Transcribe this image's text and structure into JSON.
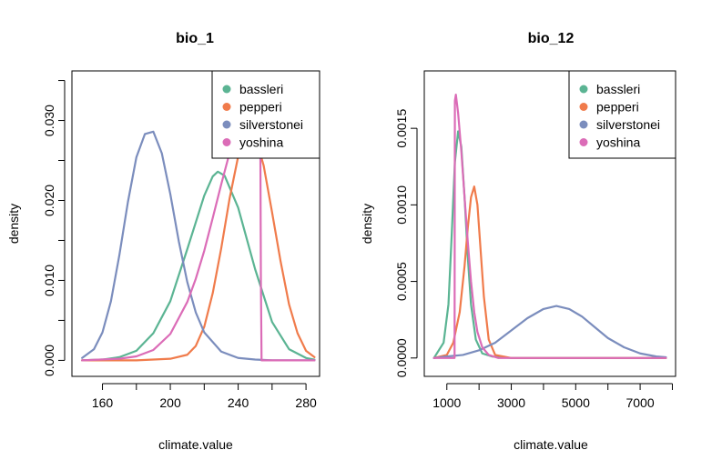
{
  "colors": {
    "bassleri": "#5bb493",
    "pepperi": "#f07b4b",
    "silverstonei": "#7b8dbd",
    "yoshina": "#db6cb7"
  },
  "chart_data": [
    {
      "type": "line",
      "title": "bio_1",
      "xlabel": "climate.value",
      "ylabel": "density",
      "xlim": [
        142,
        288
      ],
      "ylim": [
        -0.002,
        0.0362
      ],
      "xticks": [
        160,
        200,
        240,
        280
      ],
      "xtick_labels": [
        "160",
        "200",
        "240",
        "280"
      ],
      "xticks_minor": [
        140,
        180,
        220,
        260
      ],
      "yticks": [
        0.0,
        0.01,
        0.02,
        0.03
      ],
      "ytick_labels": [
        "0.000",
        "0.010",
        "0.020",
        "0.030"
      ],
      "yticks_minor": [
        0.005,
        0.015,
        0.025,
        0.035
      ],
      "legend_position": "top-right",
      "legend": [
        "bassleri",
        "pepperi",
        "silverstonei",
        "yoshina"
      ],
      "series": [
        {
          "name": "bassleri",
          "color": "#5bb493",
          "x": [
            148,
            160,
            170,
            180,
            190,
            200,
            210,
            220,
            225,
            228,
            232,
            240,
            250,
            260,
            270,
            280,
            285
          ],
          "y": [
            0.0,
            0.0001,
            0.0004,
            0.0012,
            0.0034,
            0.0074,
            0.0139,
            0.0206,
            0.023,
            0.0236,
            0.0231,
            0.0191,
            0.0114,
            0.0048,
            0.0014,
            0.0003,
            0.0001
          ]
        },
        {
          "name": "pepperi",
          "color": "#f07b4b",
          "x": [
            148,
            180,
            200,
            210,
            215,
            220,
            225,
            230,
            235,
            240,
            245,
            250,
            255,
            260,
            265,
            270,
            275,
            280,
            285
          ],
          "y": [
            0.0,
            0.0,
            0.0002,
            0.0007,
            0.0018,
            0.0042,
            0.0084,
            0.014,
            0.0203,
            0.0255,
            0.0283,
            0.028,
            0.0244,
            0.0185,
            0.0124,
            0.007,
            0.0034,
            0.0012,
            0.0004
          ]
        },
        {
          "name": "silverstonei",
          "color": "#7b8dbd",
          "x": [
            148,
            155,
            160,
            165,
            170,
            175,
            180,
            185,
            190,
            195,
            200,
            205,
            210,
            215,
            220,
            230,
            240,
            250,
            260,
            270,
            285
          ],
          "y": [
            0.0003,
            0.0014,
            0.0035,
            0.0074,
            0.0132,
            0.0198,
            0.0254,
            0.0283,
            0.0286,
            0.0259,
            0.0208,
            0.0149,
            0.0098,
            0.006,
            0.0035,
            0.0011,
            0.0003,
            0.0001,
            0.0,
            0.0,
            0.0
          ]
        },
        {
          "name": "yoshina",
          "color": "#db6cb7",
          "x": [
            148,
            170,
            180,
            190,
            200,
            210,
            215,
            220,
            225,
            230,
            235,
            240,
            245,
            250,
            253,
            253.4,
            253.8,
            285
          ],
          "y": [
            0.0,
            0.0002,
            0.0005,
            0.0013,
            0.0033,
            0.0073,
            0.0102,
            0.0137,
            0.0178,
            0.022,
            0.026,
            0.0292,
            0.0313,
            0.032,
            0.032,
            0.01,
            0.0,
            0.0
          ]
        }
      ]
    },
    {
      "type": "line",
      "title": "bio_12",
      "xlabel": "climate.value",
      "ylabel": "density",
      "xlim": [
        300,
        8100
      ],
      "ylim": [
        -0.00012,
        0.001875
      ],
      "xticks": [
        1000,
        3000,
        5000,
        7000
      ],
      "xtick_labels": [
        "1000",
        "3000",
        "5000",
        "7000"
      ],
      "xticks_minor": [
        2000,
        4000,
        6000,
        8000
      ],
      "yticks": [
        0.0,
        0.0005,
        0.001,
        0.0015
      ],
      "ytick_labels": [
        "0.0000",
        "0.0005",
        "0.0010",
        "0.0015"
      ],
      "legend_position": "top-right",
      "legend": [
        "bassleri",
        "pepperi",
        "silverstonei",
        "yoshina"
      ],
      "series": [
        {
          "name": "bassleri",
          "color": "#5bb493",
          "x": [
            600,
            900,
            1050,
            1150,
            1250,
            1350,
            1450,
            1550,
            1650,
            1750,
            1900,
            2100,
            2400,
            3000,
            7800
          ],
          "y": [
            0.0,
            0.0001,
            0.00035,
            0.0008,
            0.00128,
            0.00148,
            0.00138,
            0.00105,
            0.00066,
            0.00035,
            0.00012,
            3e-05,
            1e-05,
            0.0,
            0.0
          ]
        },
        {
          "name": "pepperi",
          "color": "#f07b4b",
          "x": [
            600,
            1000,
            1200,
            1400,
            1550,
            1650,
            1750,
            1850,
            1950,
            2050,
            2150,
            2300,
            2500,
            3000,
            7800
          ],
          "y": [
            0.0,
            2e-05,
            0.0001,
            0.0003,
            0.0006,
            0.00085,
            0.00105,
            0.00112,
            0.001,
            0.0007,
            0.0004,
            0.00012,
            2e-05,
            0.0,
            0.0
          ]
        },
        {
          "name": "silverstonei",
          "color": "#7b8dbd",
          "x": [
            600,
            1000,
            1500,
            2000,
            2500,
            3000,
            3500,
            4000,
            4400,
            4800,
            5200,
            5600,
            6000,
            6500,
            7000,
            7500,
            7800
          ],
          "y": [
            0.0,
            1e-05,
            2e-05,
            5e-05,
            0.0001,
            0.00018,
            0.00026,
            0.00032,
            0.00034,
            0.00032,
            0.00027,
            0.0002,
            0.00013,
            7e-05,
            3e-05,
            1e-05,
            5e-06
          ]
        },
        {
          "name": "yoshina",
          "color": "#db6cb7",
          "x": [
            600,
            1240,
            1245,
            1250,
            1280,
            1350,
            1450,
            1550,
            1650,
            1750,
            1850,
            1950,
            2100,
            2300,
            2600,
            3000,
            7800
          ],
          "y": [
            0.0,
            0.0,
            0.001,
            0.00168,
            0.00172,
            0.0016,
            0.00135,
            0.00105,
            0.00076,
            0.0005,
            0.0003,
            0.00017,
            7e-05,
            2e-05,
            0.0,
            0.0,
            0.0
          ]
        }
      ]
    }
  ]
}
